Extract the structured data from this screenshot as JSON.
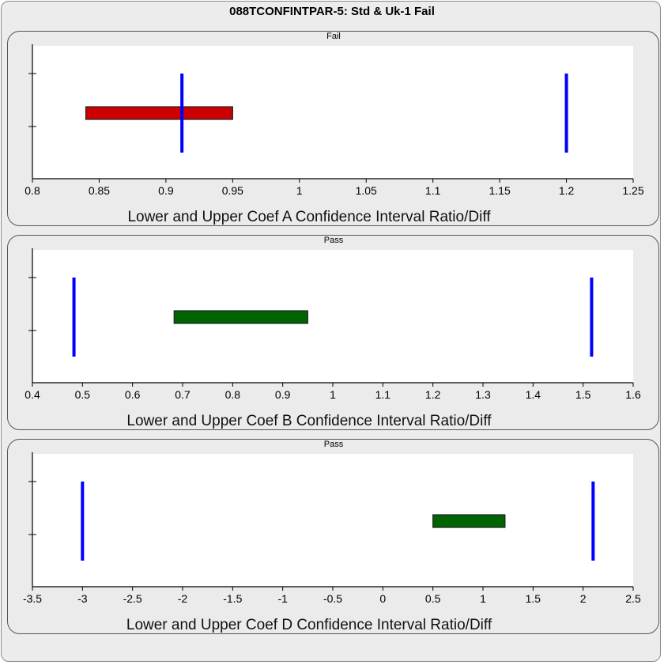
{
  "title": "088TCONFINTPAR-5:  Std  & Uk-1 Fail",
  "chart_data": [
    {
      "type": "bar",
      "panel_title": "Fail",
      "xlabel": "Lower and Upper Coef A Confidence Interval Ratio/Diff",
      "xlim": [
        0.8,
        1.25
      ],
      "xticks": [
        "0.8",
        "0.85",
        "0.9",
        "0.95",
        "1",
        "1.05",
        "1.1",
        "1.15",
        "1.2",
        "1.25"
      ],
      "interval": [
        0.84,
        0.95
      ],
      "interval_color": "#cc0000",
      "limits": [
        0.912,
        1.2
      ],
      "limit_color": "#0000ff",
      "result": "Fail"
    },
    {
      "type": "bar",
      "panel_title": "Pass",
      "xlabel": "Lower and Upper Coef B Confidence Interval Ratio/Diff",
      "xlim": [
        0.4,
        1.6
      ],
      "xticks": [
        "0.4",
        "0.5",
        "0.6",
        "0.7",
        "0.8",
        "0.9",
        "1",
        "1.1",
        "1.2",
        "1.3",
        "1.4",
        "1.5",
        "1.6"
      ],
      "interval": [
        0.683,
        0.95
      ],
      "interval_color": "#006400",
      "limits": [
        0.483,
        1.517
      ],
      "limit_color": "#0000ff",
      "result": "Pass"
    },
    {
      "type": "bar",
      "panel_title": "Pass",
      "xlabel": "Lower and Upper Coef D Confidence Interval Ratio/Diff",
      "xlim": [
        -3.5,
        2.5
      ],
      "xticks": [
        "-3.5",
        "-3",
        "-2.5",
        "-2",
        "-1.5",
        "-1",
        "-0.5",
        "0",
        "0.5",
        "1",
        "1.5",
        "2",
        "2.5"
      ],
      "interval": [
        0.5,
        1.22
      ],
      "interval_color": "#006400",
      "limits": [
        -3.0,
        2.1
      ],
      "limit_color": "#0000ff",
      "result": "Pass"
    }
  ]
}
